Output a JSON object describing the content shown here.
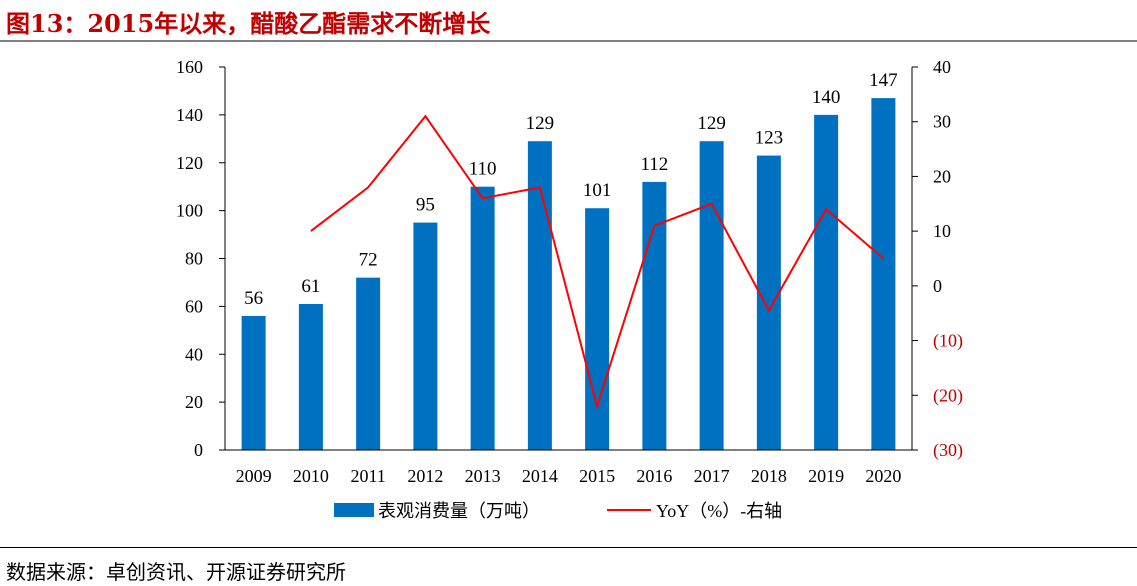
{
  "title": "图13：2015年以来，醋酸乙酯需求不断增长",
  "source": "数据来源：卓创资讯、开源证券研究所",
  "colors": {
    "bar": "#0070c0",
    "line": "#ff0000",
    "negative_tick": "#c00000",
    "text": "#000000"
  },
  "chart_data": {
    "type": "bar+line",
    "categories": [
      "2009",
      "2010",
      "2011",
      "2012",
      "2013",
      "2014",
      "2015",
      "2016",
      "2017",
      "2018",
      "2019",
      "2020"
    ],
    "series": [
      {
        "name": "表观消费量（万吨）",
        "type": "bar",
        "axis": "left",
        "values": [
          56,
          61,
          72,
          95,
          110,
          129,
          101,
          112,
          129,
          123,
          140,
          147
        ],
        "labels": [
          "56",
          "61",
          "72",
          "95",
          "110",
          "129",
          "101",
          "112",
          "129",
          "123",
          "140",
          "147"
        ]
      },
      {
        "name": "YoY（%）-右轴",
        "type": "line",
        "axis": "right",
        "values": [
          null,
          10,
          18,
          31,
          16,
          18,
          -22,
          11,
          15,
          -4.5,
          14,
          5
        ]
      }
    ],
    "left_axis": {
      "min": 0,
      "max": 160,
      "step": 20,
      "ticks": [
        "0",
        "20",
        "40",
        "60",
        "80",
        "100",
        "120",
        "140",
        "160"
      ]
    },
    "right_axis": {
      "min": -30,
      "max": 40,
      "step": 10,
      "ticks": [
        "(30)",
        "(20)",
        "(10)",
        "0",
        "10",
        "20",
        "30",
        "40"
      ]
    },
    "legend": {
      "position": "bottom",
      "items": [
        "表观消费量（万吨）",
        "YoY（%）-右轴"
      ]
    }
  }
}
